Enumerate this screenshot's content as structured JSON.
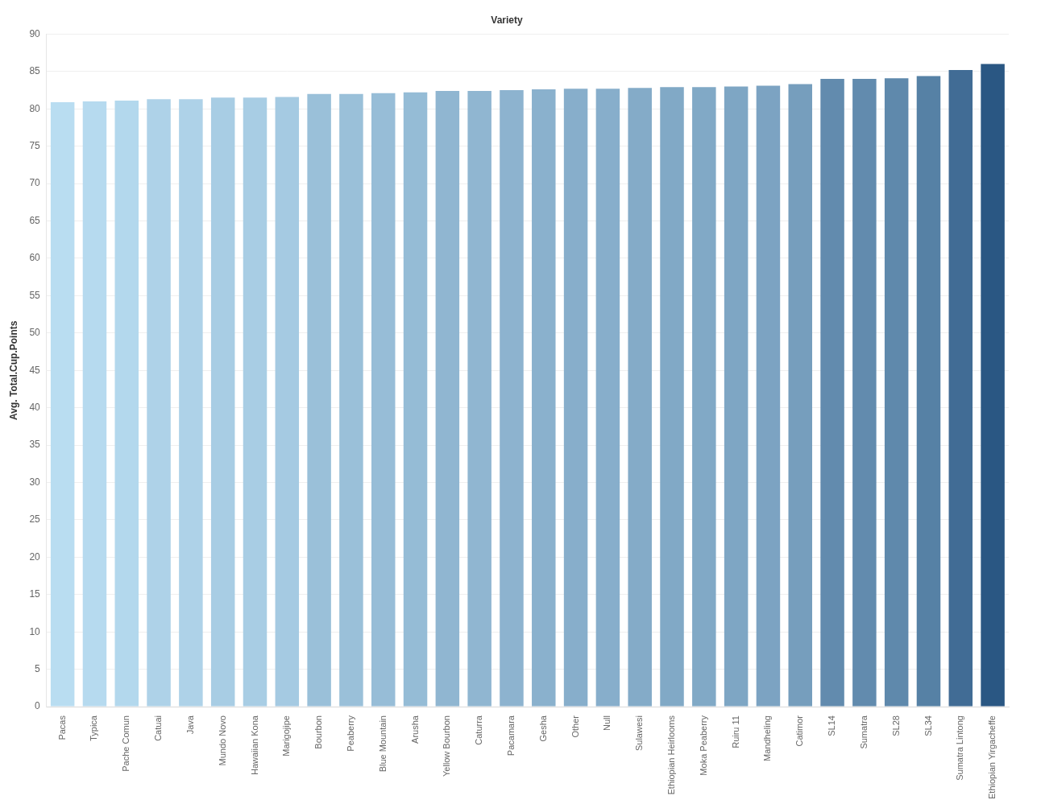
{
  "chart_data": {
    "type": "bar",
    "title": "Variety",
    "y_label": "Avg. Total.Cup.Points",
    "categories": [
      "Pacas",
      "Typica",
      "Pache Comun",
      "Catuai",
      "Java",
      "Mundo Novo",
      "Hawaiian Kona",
      "Marigojipe",
      "Bourbon",
      "Peaberry",
      "Blue Mountain",
      "Arusha",
      "Yellow Bourbon",
      "Caturra",
      "Pacamara",
      "Gesha",
      "Other",
      "Null",
      "Sulawesi",
      "Ethiopian Heirlooms",
      "Moka Peaberry",
      "Ruiru 11",
      "Mandheling",
      "Catimor",
      "SL14",
      "Sumatra",
      "SL28",
      "SL34",
      "Sumatra Lintong",
      "Ethiopian Yirgacheffe"
    ],
    "values": [
      80.9,
      81.0,
      81.1,
      81.3,
      81.3,
      81.5,
      81.5,
      81.6,
      82.0,
      82.0,
      82.1,
      82.2,
      82.4,
      82.4,
      82.5,
      82.6,
      82.7,
      82.7,
      82.8,
      82.9,
      82.9,
      83.0,
      83.1,
      83.3,
      84.0,
      84.0,
      84.1,
      84.4,
      85.2,
      86.0
    ],
    "colors": [
      "#b9ddf1",
      "#b6daef",
      "#b3d8ed",
      "#aed2e8",
      "#aed2e8",
      "#a8cde4",
      "#a8cde4",
      "#a5cae2",
      "#9ac0d9",
      "#9ac0d9",
      "#97bdd7",
      "#95bcd6",
      "#90b6d1",
      "#90b6d1",
      "#8db3cf",
      "#8ab1cd",
      "#87aecb",
      "#87aecb",
      "#84abc8",
      "#81a9c6",
      "#81a9c6",
      "#7ea6c4",
      "#7ca3c2",
      "#769ebd",
      "#628bae",
      "#628bae",
      "#5f89ac",
      "#5681a5",
      "#416c95",
      "#2a5783"
    ],
    "ylim": [
      0,
      90
    ],
    "yticks": [
      0,
      5,
      10,
      15,
      20,
      25,
      30,
      35,
      40,
      45,
      50,
      55,
      60,
      65,
      70,
      75,
      80,
      85,
      90
    ],
    "grid": true
  }
}
